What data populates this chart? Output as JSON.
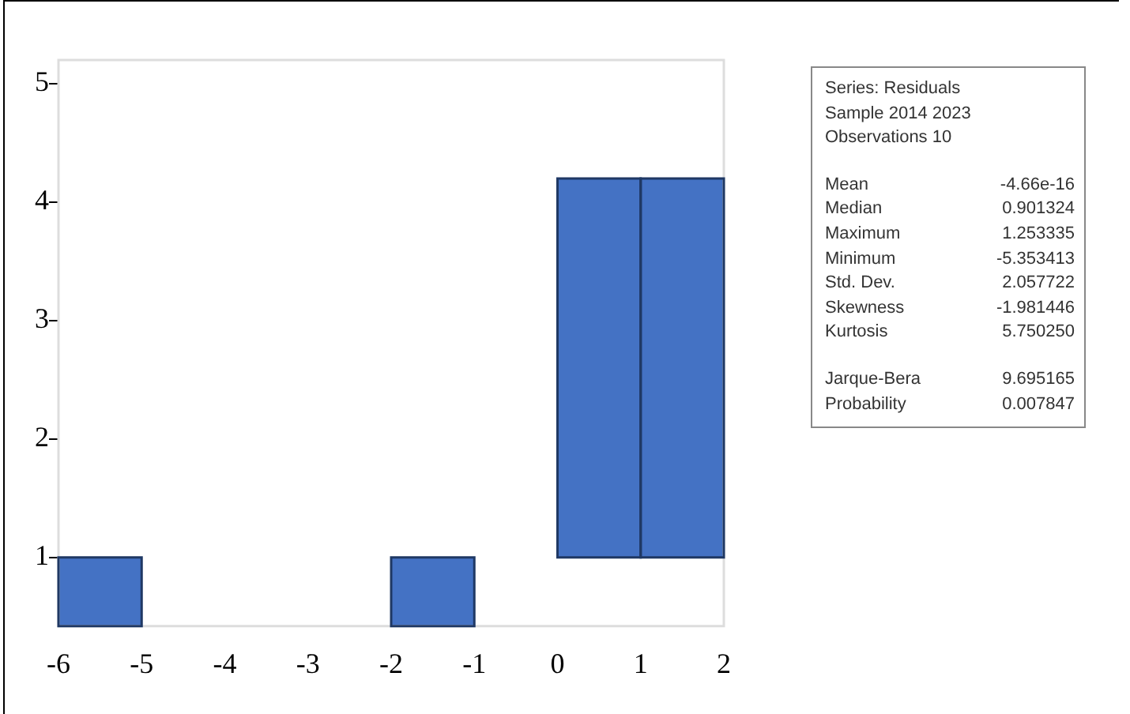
{
  "chart_data": {
    "type": "bar",
    "x": [
      -5.5,
      -1.5,
      0.5,
      1.5
    ],
    "values": [
      0.58,
      0.58,
      3.2,
      3.2
    ],
    "base": [
      0.42,
      0.42,
      1,
      1
    ],
    "color": "#4472c4",
    "xlim": [
      -6,
      2
    ],
    "xticks": [
      -6,
      -5,
      -4,
      -3,
      -2,
      -1,
      0,
      1,
      2
    ],
    "ylim": [
      0.42,
      5.2
    ],
    "yticks": [
      1,
      2,
      3,
      4,
      5
    ],
    "annotations": [
      "Series: Residuals",
      "Sample 2014 2023",
      "Observations 10",
      "Mean -4.66e-16",
      "Median 0.901324",
      "Maximum 1.253335",
      "Minimum -5.353413",
      "Std. Dev. 2.057722",
      "Skewness -1.981446",
      "Kurtosis 5.750250",
      "Jarque-Bera 9.695165",
      "Probability 0.007847"
    ]
  }
}
